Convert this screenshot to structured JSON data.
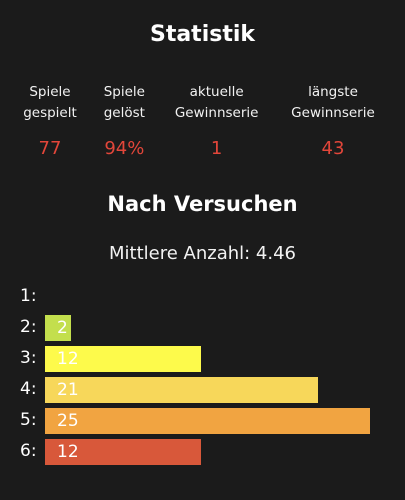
{
  "title": "Statistik",
  "stats": [
    {
      "label_line1": "Spiele",
      "label_line2": "gespielt",
      "value": "77"
    },
    {
      "label_line1": "Spiele",
      "label_line2": "gelöst",
      "value": "94%"
    },
    {
      "label_line1": "aktuelle",
      "label_line2": "Gewinnserie",
      "value": "1"
    },
    {
      "label_line1": "längste",
      "label_line2": "Gewinnserie",
      "value": "43"
    }
  ],
  "distribution": {
    "title": "Nach Versuchen",
    "average_text": "Mittlere Anzahl: 4.46",
    "max": 25,
    "rows": [
      {
        "label": "1:",
        "count": 0,
        "count_text": "",
        "color": ""
      },
      {
        "label": "2:",
        "count": 2,
        "count_text": "2",
        "color": "#c3df4d"
      },
      {
        "label": "3:",
        "count": 12,
        "count_text": "12",
        "color": "#fdfa4b"
      },
      {
        "label": "4:",
        "count": 21,
        "count_text": "21",
        "color": "#f7d75a"
      },
      {
        "label": "5:",
        "count": 25,
        "count_text": "25",
        "color": "#f1a441"
      },
      {
        "label": "6:",
        "count": 12,
        "count_text": "12",
        "color": "#d8583a"
      }
    ]
  },
  "colors": {
    "value_red": "#e2463a",
    "background": "#1b1b1b"
  }
}
